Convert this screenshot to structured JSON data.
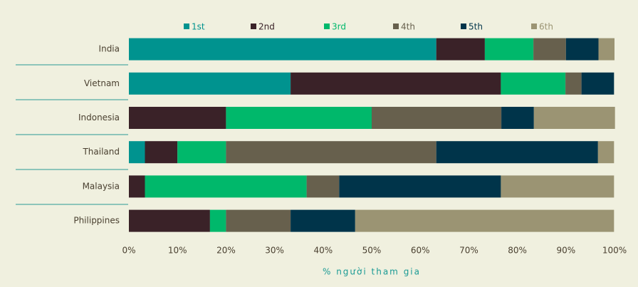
{
  "chart_data": {
    "type": "stacked_barh",
    "categories": [
      "India",
      "Vietnam",
      "Indonesia",
      "Thailand",
      "Malaysia",
      "Philippines"
    ],
    "series": [
      {
        "name": "1st",
        "color": "#00938f",
        "values": [
          63.3,
          33.3,
          0,
          3.3,
          0,
          0
        ]
      },
      {
        "name": "2nd",
        "color": "#3a2228",
        "values": [
          10,
          43.3,
          20,
          6.7,
          3.3,
          16.7
        ]
      },
      {
        "name": "3rd",
        "color": "#00b86b",
        "values": [
          10,
          13.3,
          30,
          10,
          33.3,
          3.3
        ]
      },
      {
        "name": "4th",
        "color": "#67604d",
        "values": [
          6.7,
          3.3,
          26.7,
          43.3,
          6.7,
          13.3
        ]
      },
      {
        "name": "5th",
        "color": "#00344a",
        "values": [
          6.7,
          6.7,
          6.7,
          33.3,
          33.3,
          13.3
        ]
      },
      {
        "name": "6th",
        "color": "#9b9473",
        "values": [
          3.3,
          0,
          16.7,
          3.3,
          23.3,
          53.3
        ]
      }
    ],
    "x_label": "% người tham gia",
    "xlim": [
      0,
      100
    ],
    "xticks": [
      {
        "value": 0,
        "label": "0%"
      },
      {
        "value": 10,
        "label": "10%"
      },
      {
        "value": 20,
        "label": "20%"
      },
      {
        "value": 30,
        "label": "30%"
      },
      {
        "value": 40,
        "label": "40%"
      },
      {
        "value": 50,
        "label": "50%"
      },
      {
        "value": 60,
        "label": "60%"
      },
      {
        "value": 70,
        "label": "70%"
      },
      {
        "value": 80,
        "label": "80%"
      },
      {
        "value": 90,
        "label": "90%"
      },
      {
        "value": 100,
        "label": "100%"
      }
    ]
  }
}
